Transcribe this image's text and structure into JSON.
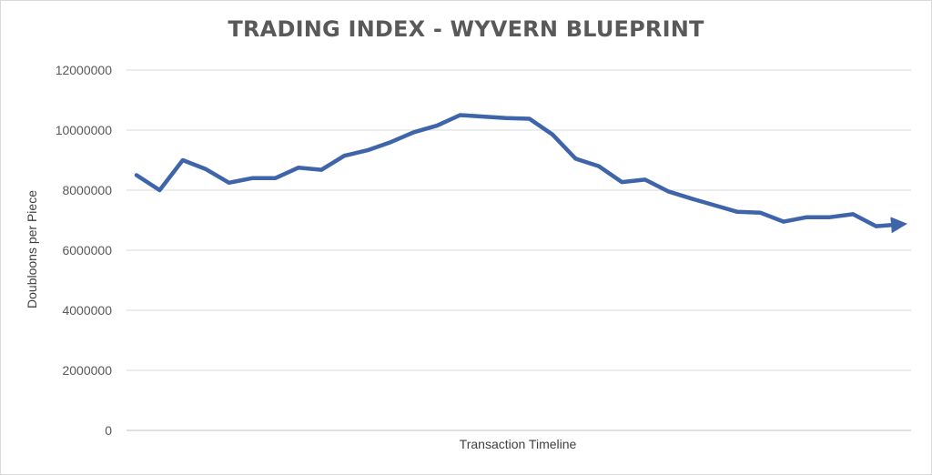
{
  "chart_data": {
    "type": "line",
    "title": "TRADING INDEX - WYVERN BLUEPRINT",
    "xlabel": "Transaction Timeline",
    "ylabel": "Doubloons per Piece",
    "ylim": [
      0,
      12000000
    ],
    "yticks": [
      0,
      2000000,
      4000000,
      6000000,
      8000000,
      10000000,
      12000000
    ],
    "ytick_labels": [
      "0",
      "2000000",
      "4000000",
      "6000000",
      "8000000",
      "10000000",
      "12000000"
    ],
    "grid": true,
    "legend": "none",
    "line_color": "#3e64aa",
    "end_marker": "arrow",
    "series": [
      {
        "values": [
          8500000,
          8000000,
          9000000,
          8700000,
          8250000,
          8400000,
          8400000,
          8750000,
          8680000,
          9150000,
          9330000,
          9600000,
          9930000,
          10150000,
          10500000,
          10450000,
          10400000,
          10380000,
          9850000,
          9050000,
          8800000,
          8270000,
          8350000,
          7960000,
          7720000,
          7500000,
          7280000,
          7250000,
          6950000,
          7100000,
          7100000,
          7200000,
          6800000,
          6860000
        ]
      }
    ]
  }
}
